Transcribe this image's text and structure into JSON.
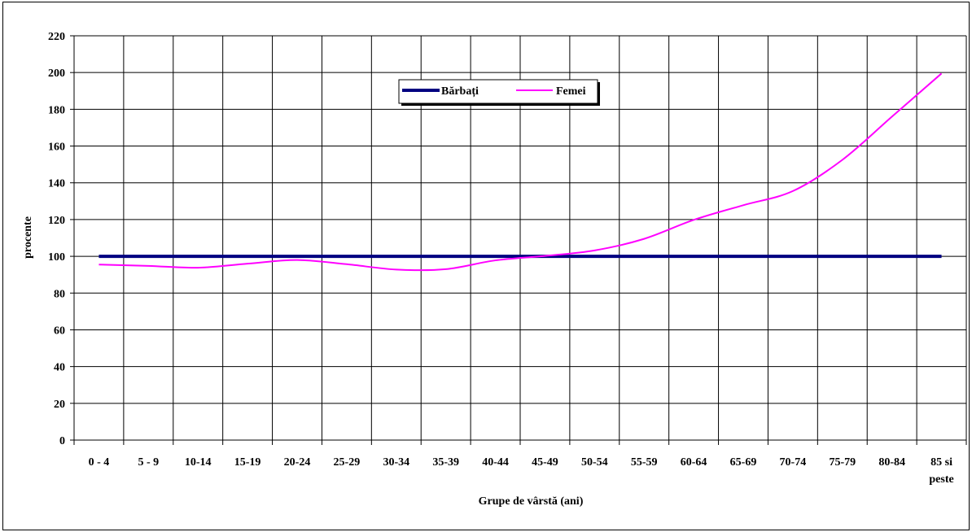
{
  "chart_data": {
    "type": "line",
    "title": "",
    "xlabel": "Grupe de vârstă  (ani)",
    "ylabel": "procente",
    "ylim": [
      0,
      220
    ],
    "ystep": 20,
    "grid": true,
    "legend_position": "top-center",
    "categories": [
      "0 - 4",
      "5 - 9",
      "10-14",
      "15-19",
      "20-24",
      "25-29",
      "30-34",
      "35-39",
      "40-44",
      "45-49",
      "50-54",
      "55-59",
      "60-64",
      "65-69",
      "70-74",
      "75-79",
      "80-84",
      "85 si peste"
    ],
    "series": [
      {
        "name": "Bărbați",
        "color": "#000080",
        "values": [
          100,
          100,
          100,
          100,
          100,
          100,
          100,
          100,
          100,
          100,
          100,
          100,
          100,
          100,
          100,
          100,
          100,
          100
        ]
      },
      {
        "name": "Femei",
        "color": "#FF00FF",
        "values": [
          95.5,
          94.8,
          93.8,
          96.0,
          98.0,
          95.7,
          92.8,
          93.0,
          97.8,
          100.2,
          103.2,
          109.5,
          119.8,
          127.8,
          135.5,
          152.5,
          176.0,
          199.5
        ]
      }
    ]
  }
}
